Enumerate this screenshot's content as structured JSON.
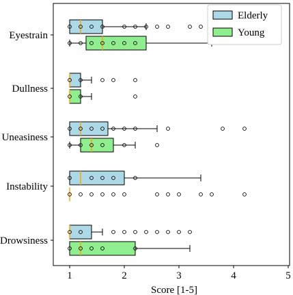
{
  "chart_data": {
    "type": "boxplot",
    "orientation": "horizontal",
    "xlabel": "Score [1-5]",
    "ylabel": "",
    "xlim": [
      0.7,
      5
    ],
    "xticks": [
      1,
      2,
      3,
      4,
      5
    ],
    "grid": false,
    "legend_position": "top-right",
    "categories": [
      "Eyestrain",
      "Dullness",
      "Uneasiness",
      "Instability",
      "Drowsiness"
    ],
    "series": [
      {
        "name": "Elderly",
        "color": "#add8e6",
        "boxes": [
          {
            "category": "Eyestrain",
            "whisker_low": 1.0,
            "q1": 1.0,
            "median": 1.2,
            "q3": 1.6,
            "whisker_high": 2.4,
            "means_markers": [
              1.0,
              1.2,
              1.4,
              1.6
            ],
            "fliers": [
              2.0,
              2.2,
              2.4,
              2.6,
              2.8,
              3.2,
              3.4,
              3.6
            ]
          },
          {
            "category": "Dullness",
            "whisker_low": 1.0,
            "q1": 1.0,
            "median": 1.0,
            "q3": 1.2,
            "whisker_high": 1.4,
            "means_markers": [
              1.0,
              1.2
            ],
            "fliers": [
              1.6,
              1.8,
              2.2
            ]
          },
          {
            "category": "Uneasiness",
            "whisker_low": 1.0,
            "q1": 1.0,
            "median": 1.2,
            "q3": 1.7,
            "whisker_high": 2.6,
            "means_markers": [
              1.0,
              1.2,
              1.4,
              1.6,
              1.8
            ],
            "fliers": [
              2.0,
              2.2,
              2.8,
              3.8,
              4.2
            ]
          },
          {
            "category": "Instability",
            "whisker_low": 1.0,
            "q1": 1.0,
            "median": 1.2,
            "q3": 2.0,
            "whisker_high": 3.4,
            "means_markers": [
              1.0,
              1.4,
              1.6,
              1.8
            ],
            "fliers": [
              2.2
            ]
          },
          {
            "category": "Drowsiness",
            "whisker_low": 1.0,
            "q1": 1.0,
            "median": 1.0,
            "q3": 1.4,
            "whisker_high": 1.6,
            "means_markers": [
              1.0,
              1.2
            ],
            "fliers": [
              1.8,
              2.0,
              2.2,
              2.4,
              2.6,
              2.8,
              3.0,
              3.2
            ]
          }
        ]
      },
      {
        "name": "Young",
        "color": "#90ee90",
        "boxes": [
          {
            "category": "Eyestrain",
            "whisker_low": 1.0,
            "q1": 1.3,
            "median": 1.6,
            "q3": 2.4,
            "whisker_high": 3.6,
            "means_markers": [
              1.0,
              1.2,
              1.4,
              1.6,
              1.8,
              2.0,
              2.2
            ],
            "fliers": []
          },
          {
            "category": "Dullness",
            "whisker_low": 1.0,
            "q1": 1.0,
            "median": 1.0,
            "q3": 1.2,
            "whisker_high": 1.4,
            "means_markers": [
              1.0,
              1.2
            ],
            "fliers": [
              2.2
            ]
          },
          {
            "category": "Uneasiness",
            "whisker_low": 1.0,
            "q1": 1.2,
            "median": 1.4,
            "q3": 1.8,
            "whisker_high": 2.2,
            "means_markers": [
              1.0,
              1.2,
              1.4,
              1.6,
              2.0
            ],
            "fliers": [
              2.6
            ]
          },
          {
            "category": "Instability",
            "whisker_low": 1.0,
            "q1": 1.0,
            "median": 1.0,
            "q3": 1.0,
            "whisker_high": 1.0,
            "means_markers": [
              1.0
            ],
            "fliers": [
              1.2,
              1.4,
              1.6,
              1.8,
              2.0,
              2.6,
              2.8,
              3.0,
              3.4,
              3.6,
              4.2
            ]
          },
          {
            "category": "Drowsiness",
            "whisker_low": 1.0,
            "q1": 1.0,
            "median": 1.2,
            "q3": 2.2,
            "whisker_high": 3.2,
            "means_markers": [
              1.0,
              1.2,
              1.4,
              1.6,
              2.2
            ],
            "fliers": []
          }
        ]
      }
    ],
    "median_color": "#ffa500"
  }
}
